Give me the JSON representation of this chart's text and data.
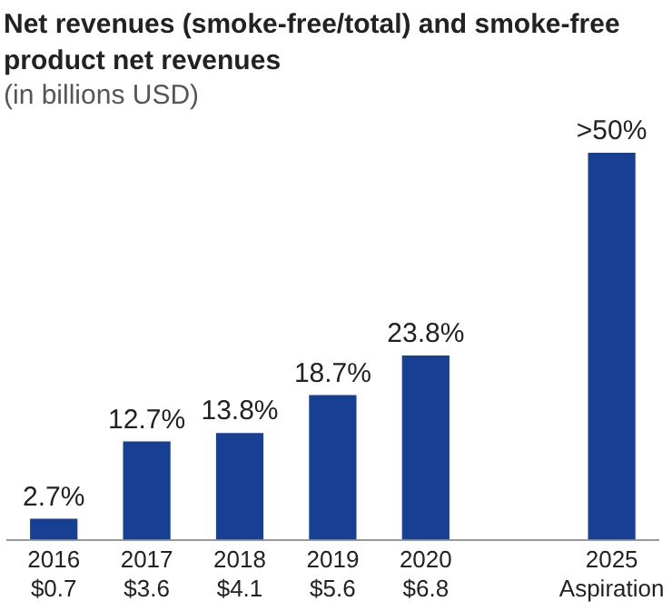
{
  "chart_data": {
    "type": "bar",
    "title": "Net revenues (smoke-free/total) and smoke-free product net revenues",
    "subtitle": "(in billions USD)",
    "categories": [
      "2016\n$0.7",
      "2017\n$3.6",
      "2018\n$4.1",
      "2019\n$5.6",
      "2020\n$6.8",
      null,
      "2025\nAspiration"
    ],
    "values": [
      2.7,
      12.7,
      13.8,
      18.7,
      23.8,
      null,
      50
    ],
    "value_labels": [
      "2.7%",
      "12.7%",
      "13.8%",
      "18.7%",
      "23.8%",
      null,
      ">50%"
    ],
    "color": "#173f94",
    "grid": false,
    "legend": false
  }
}
